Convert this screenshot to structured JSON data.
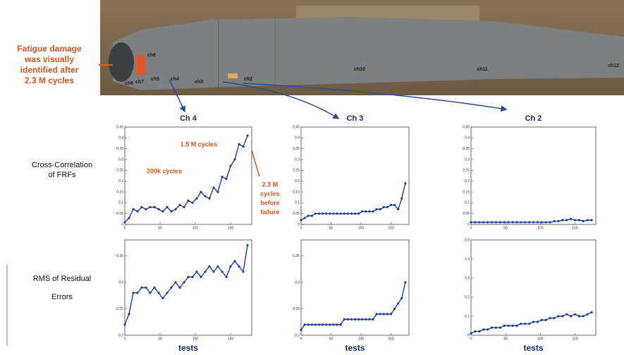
{
  "side_note": [
    "Fatigue damage",
    "was visually",
    "identified after",
    "2.3 M cycles"
  ],
  "blade_labels": [
    "ch6",
    "ch8",
    "ch7",
    "ch5",
    "ch4",
    "ch3",
    "ch2",
    "ch10",
    "ch11",
    "ch12"
  ],
  "row_labels": [
    [
      "Cross-Correlation",
      "of FRFs"
    ],
    [
      "RMS of Residual",
      "Errors"
    ]
  ],
  "chart_data": [
    {
      "type": "line",
      "title": "Ch 4",
      "color": "#1f3c9e",
      "xlim": [
        0,
        180
      ],
      "xticks": [
        0,
        50,
        100,
        150
      ],
      "ylim": [
        0,
        0.45
      ],
      "yticks": [
        0,
        0.05,
        0.1,
        0.15,
        0.2,
        0.25,
        0.3,
        0.35,
        0.4,
        0.45
      ],
      "annotations": [
        "1.5 M cycles",
        "200k cycles",
        "2.3 M",
        "cycles",
        "before",
        "failure"
      ],
      "x": [
        0,
        6,
        12,
        18,
        24,
        30,
        36,
        42,
        48,
        54,
        60,
        66,
        72,
        78,
        84,
        90,
        96,
        102,
        108,
        114,
        120,
        126,
        132,
        138,
        144,
        150,
        156,
        162,
        168,
        174
      ],
      "values": [
        0.01,
        0.03,
        0.07,
        0.06,
        0.08,
        0.07,
        0.08,
        0.08,
        0.07,
        0.06,
        0.08,
        0.06,
        0.07,
        0.09,
        0.08,
        0.11,
        0.1,
        0.12,
        0.15,
        0.13,
        0.12,
        0.17,
        0.15,
        0.22,
        0.21,
        0.27,
        0.3,
        0.37,
        0.36,
        0.41
      ]
    },
    {
      "type": "line",
      "title": "Ch 3",
      "color": "#1f3c9e",
      "xlim": [
        0,
        180
      ],
      "xticks": [
        0,
        50,
        100,
        150
      ],
      "ylim": [
        0,
        0.45
      ],
      "yticks": [
        0,
        0.05,
        0.1,
        0.15,
        0.2,
        0.25,
        0.3,
        0.35,
        0.4,
        0.45
      ],
      "x": [
        0,
        6,
        12,
        18,
        24,
        30,
        36,
        42,
        48,
        54,
        60,
        66,
        72,
        78,
        84,
        90,
        96,
        102,
        108,
        114,
        120,
        126,
        132,
        138,
        144,
        150,
        156,
        162,
        168,
        174
      ],
      "values": [
        0.02,
        0.03,
        0.04,
        0.04,
        0.05,
        0.05,
        0.05,
        0.05,
        0.05,
        0.05,
        0.05,
        0.05,
        0.05,
        0.05,
        0.05,
        0.05,
        0.05,
        0.06,
        0.06,
        0.06,
        0.06,
        0.07,
        0.07,
        0.08,
        0.08,
        0.09,
        0.09,
        0.07,
        0.12,
        0.19
      ]
    },
    {
      "type": "line",
      "title": "Ch 2",
      "color": "#1f3c9e",
      "xlim": [
        0,
        180
      ],
      "xticks": [
        0,
        50,
        100,
        150
      ],
      "ylim": [
        0,
        0.45
      ],
      "yticks": [
        0,
        0.05,
        0.1,
        0.15,
        0.2,
        0.25,
        0.3,
        0.35,
        0.4,
        0.45
      ],
      "x": [
        0,
        6,
        12,
        18,
        24,
        30,
        36,
        42,
        48,
        54,
        60,
        66,
        72,
        78,
        84,
        90,
        96,
        102,
        108,
        114,
        120,
        126,
        132,
        138,
        144,
        150,
        156,
        162,
        168,
        174
      ],
      "values": [
        0.01,
        0.01,
        0.01,
        0.01,
        0.01,
        0.01,
        0.01,
        0.01,
        0.01,
        0.01,
        0.01,
        0.01,
        0.01,
        0.01,
        0.01,
        0.01,
        0.01,
        0.01,
        0.01,
        0.01,
        0.015,
        0.015,
        0.02,
        0.02,
        0.025,
        0.02,
        0.02,
        0.015,
        0.02,
        0.02
      ]
    },
    {
      "type": "line",
      "xlabel": "tests",
      "color": "#1f3c9e",
      "xlim": [
        0,
        180
      ],
      "xticks": [
        0,
        50,
        100,
        150
      ],
      "ylim": [
        0.2,
        0.38
      ],
      "yticks": [
        0.2,
        0.25,
        0.3,
        0.35
      ],
      "x": [
        0,
        6,
        12,
        18,
        24,
        30,
        36,
        42,
        48,
        54,
        60,
        66,
        72,
        78,
        84,
        90,
        96,
        102,
        108,
        114,
        120,
        126,
        132,
        138,
        144,
        150,
        156,
        162,
        168,
        174
      ],
      "values": [
        0.22,
        0.24,
        0.28,
        0.28,
        0.29,
        0.29,
        0.28,
        0.29,
        0.28,
        0.27,
        0.28,
        0.29,
        0.3,
        0.29,
        0.3,
        0.31,
        0.31,
        0.32,
        0.31,
        0.32,
        0.33,
        0.32,
        0.33,
        0.32,
        0.31,
        0.33,
        0.34,
        0.33,
        0.32,
        0.37
      ]
    },
    {
      "type": "line",
      "xlabel": "tests",
      "color": "#1f3c9e",
      "xlim": [
        0,
        180
      ],
      "xticks": [
        0,
        50,
        100,
        150
      ],
      "ylim": [
        0.2,
        0.38
      ],
      "yticks": [
        0.2,
        0.25,
        0.3,
        0.35
      ],
      "x": [
        0,
        6,
        12,
        18,
        24,
        30,
        36,
        42,
        48,
        54,
        60,
        66,
        72,
        78,
        84,
        90,
        96,
        102,
        108,
        114,
        120,
        126,
        132,
        138,
        144,
        150,
        156,
        162,
        168,
        174
      ],
      "values": [
        0.21,
        0.22,
        0.22,
        0.22,
        0.22,
        0.22,
        0.22,
        0.22,
        0.22,
        0.22,
        0.22,
        0.22,
        0.23,
        0.23,
        0.23,
        0.23,
        0.23,
        0.23,
        0.23,
        0.23,
        0.23,
        0.24,
        0.24,
        0.24,
        0.24,
        0.24,
        0.25,
        0.26,
        0.27,
        0.3
      ]
    },
    {
      "type": "line",
      "xlabel": "tests",
      "color": "#1f3c9e",
      "xlim": [
        0,
        180
      ],
      "xticks": [
        0,
        50,
        100,
        150
      ],
      "ylim": [
        0,
        0.5
      ],
      "yticks": [
        0,
        0.1,
        0.2,
        0.3,
        0.4,
        0.5
      ],
      "x": [
        0,
        6,
        12,
        18,
        24,
        30,
        36,
        42,
        48,
        54,
        60,
        66,
        72,
        78,
        84,
        90,
        96,
        102,
        108,
        114,
        120,
        126,
        132,
        138,
        144,
        150,
        156,
        162,
        168,
        174
      ],
      "values": [
        0.01,
        0.02,
        0.02,
        0.03,
        0.03,
        0.04,
        0.04,
        0.04,
        0.05,
        0.05,
        0.05,
        0.05,
        0.06,
        0.06,
        0.06,
        0.07,
        0.07,
        0.08,
        0.08,
        0.09,
        0.09,
        0.1,
        0.1,
        0.11,
        0.1,
        0.11,
        0.1,
        0.1,
        0.11,
        0.12
      ]
    }
  ]
}
